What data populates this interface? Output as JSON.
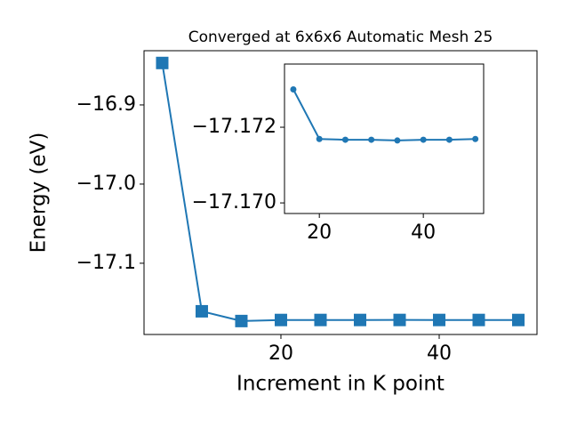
{
  "chart_data": [
    {
      "type": "line",
      "title": "Converged at 6x6x6 Automatic Mesh 25",
      "x_label": "Increment in K point",
      "y_label": "Energy (eV)",
      "series": [
        {
          "color": "#1f77b4",
          "marker": "square",
          "x": [
            5,
            10,
            15,
            20,
            25,
            30,
            35,
            40,
            45,
            50
          ],
          "values": [
            -16.847,
            -17.1607,
            -17.173,
            -17.17169,
            -17.17167,
            -17.17167,
            -17.17165,
            -17.17167,
            -17.17167,
            -17.17169
          ]
        }
      ],
      "xlim": [
        2.7,
        52.36
      ],
      "ylim": [
        -17.19,
        -16.8315
      ],
      "xticks": [
        20,
        40
      ],
      "yticks": [
        {
          "value": -17.1,
          "label": "−17.1"
        },
        {
          "value": -17.0,
          "label": "−17.0"
        },
        {
          "value": -16.9,
          "label": "−16.9"
        }
      ]
    },
    {
      "type": "line",
      "series": [
        {
          "color": "#1f77b4",
          "marker": "circle",
          "x": [
            15,
            20,
            25,
            30,
            35,
            40,
            45,
            50
          ],
          "values": [
            -17.173,
            -17.17169,
            -17.17167,
            -17.17167,
            -17.17165,
            -17.17167,
            -17.17167,
            -17.17169
          ]
        }
      ],
      "xlim": [
        13.3,
        51.6
      ],
      "ylim": [
        -17.16972,
        -17.17367
      ],
      "xticks": [
        20,
        40
      ],
      "yticks": [
        {
          "value": -17.172,
          "label": "−17.172"
        },
        {
          "value": -17.17,
          "label": "−17.170"
        }
      ]
    }
  ]
}
